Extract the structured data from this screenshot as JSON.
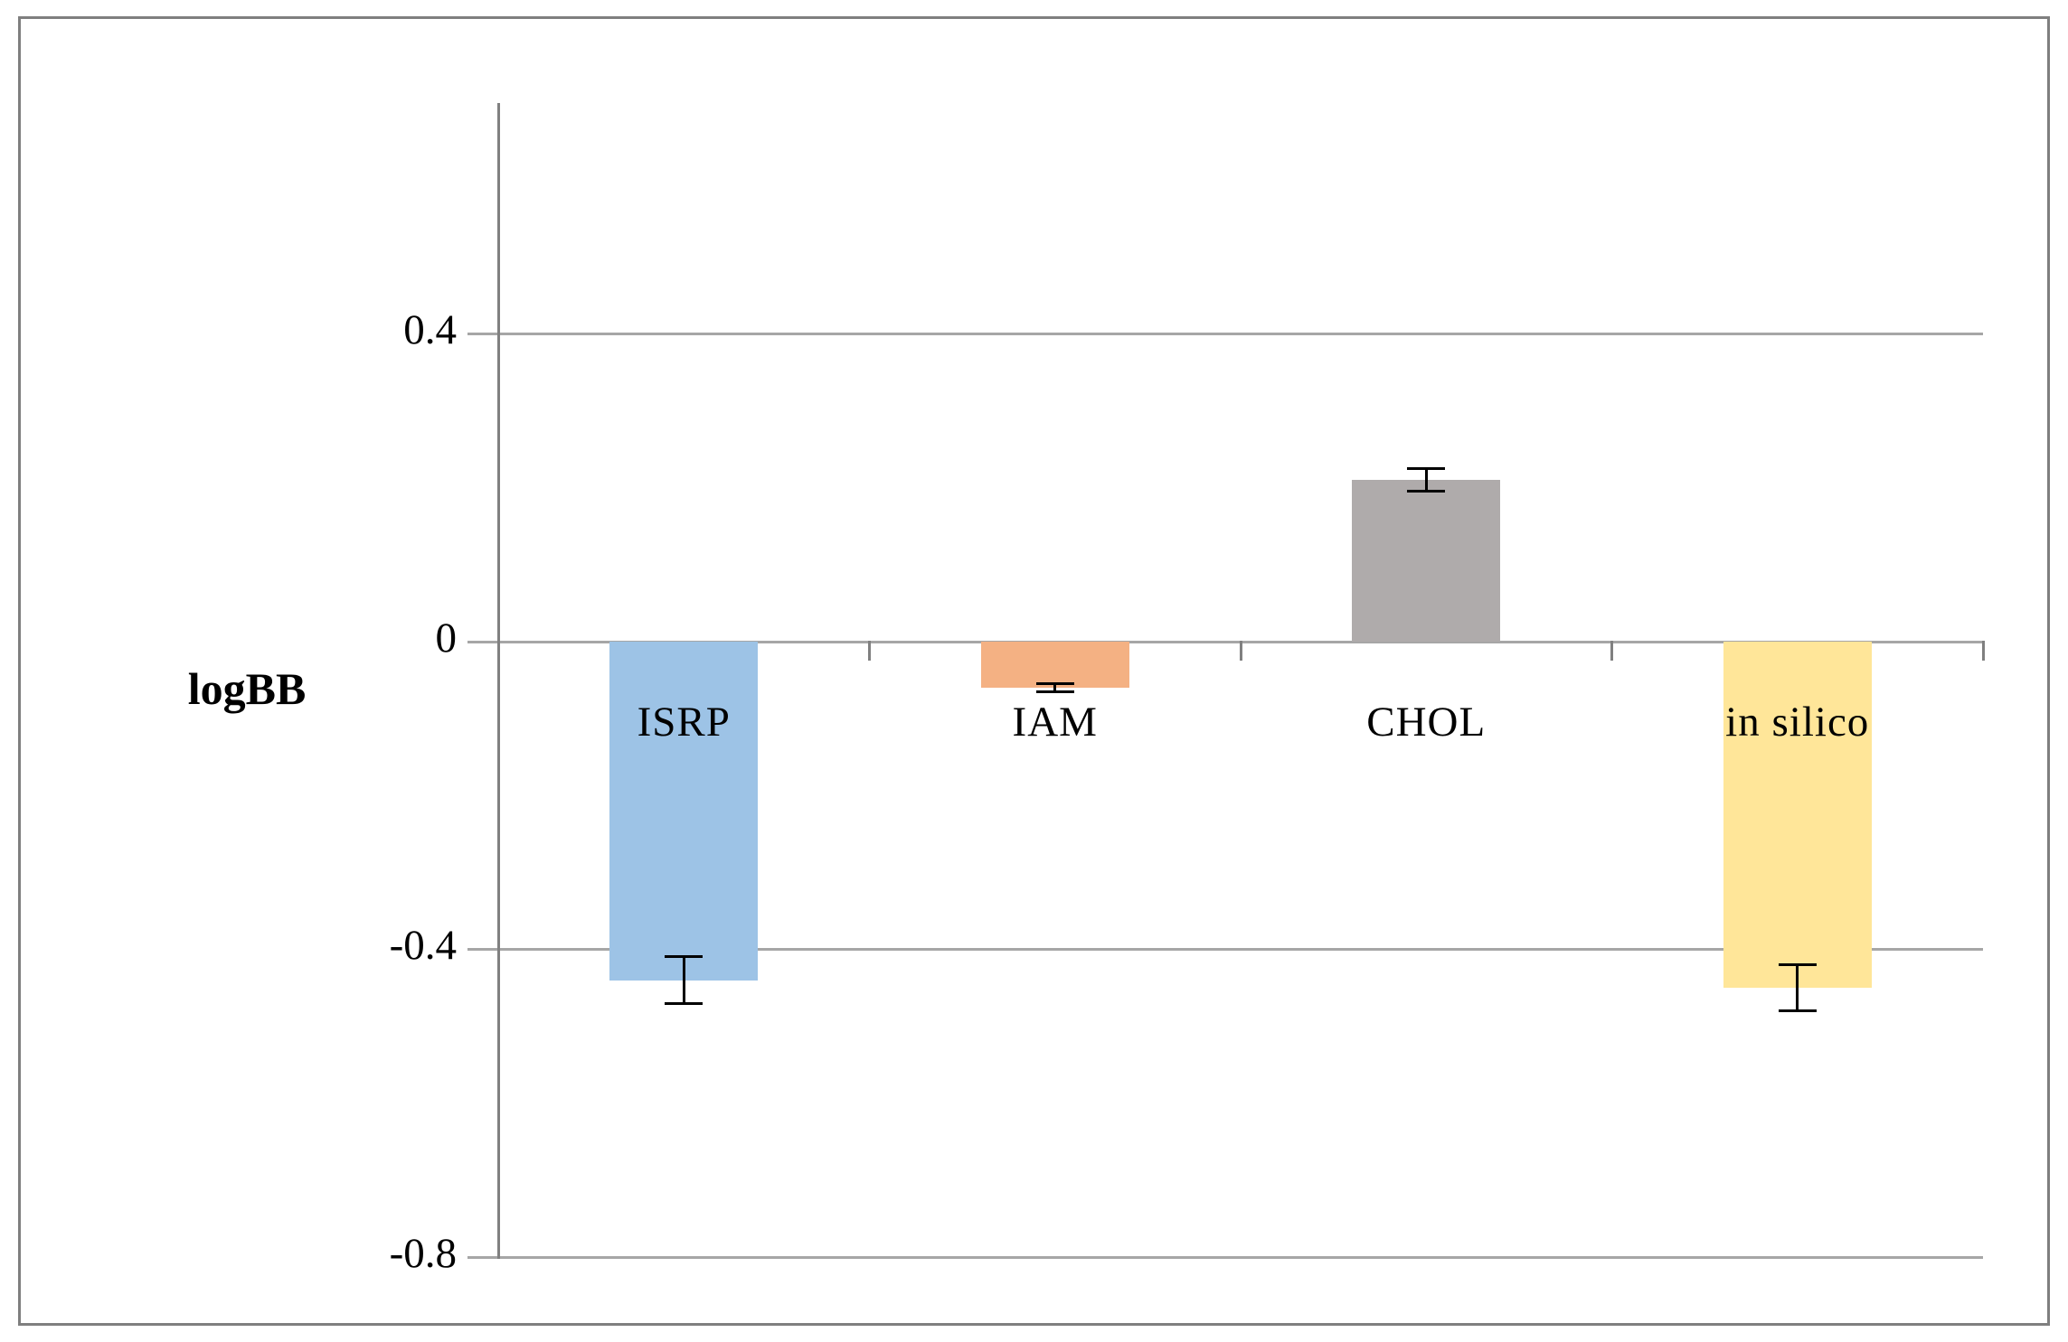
{
  "chart_data": {
    "type": "bar",
    "title": "",
    "ylabel": "logBB",
    "xlabel": "",
    "categories": [
      "ISRP",
      "IAM",
      "CHOL",
      "in silico"
    ],
    "values": [
      -0.44,
      -0.06,
      0.21,
      -0.45
    ],
    "error_bars": [
      0.03,
      0.005,
      0.015,
      0.03
    ],
    "bar_colors": [
      "#9DC3E6",
      "#F4B183",
      "#AFABAB",
      "#FFE699"
    ],
    "ytick_values": [
      0.4,
      0,
      -0.4,
      -0.8
    ],
    "ytick_labels": [
      "0.4",
      "0",
      "-0.4",
      "-0.8"
    ],
    "ylim": [
      -0.8,
      0.7
    ],
    "grid": true,
    "legend": "none",
    "colors": {
      "gridline": "#A6A6A6",
      "axis": "#808080",
      "error_bar": "#000000",
      "text": "#000000",
      "frame_border": "#7F7F7F",
      "background": "#FFFFFF"
    }
  }
}
